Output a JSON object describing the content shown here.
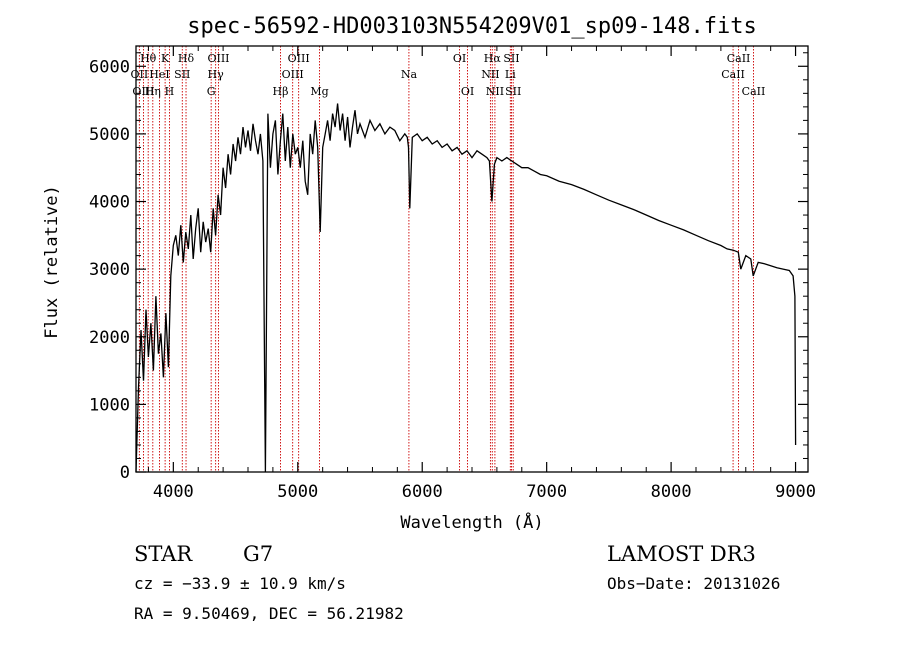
{
  "chart_data": {
    "type": "line",
    "title": "spec-56592-HD003103N554209V01_sp09-148.fits",
    "xlabel": "Wavelength (Å)",
    "ylabel": "Flux (relative)",
    "xlim": [
      3700,
      9100
    ],
    "ylim": [
      0,
      6300
    ],
    "xticks": [
      4000,
      5000,
      6000,
      7000,
      8000,
      9000
    ],
    "yticks": [
      0,
      1000,
      2000,
      3000,
      4000,
      5000,
      6000
    ],
    "series": [
      {
        "name": "spectrum",
        "x": [
          3700,
          3720,
          3740,
          3760,
          3780,
          3800,
          3820,
          3840,
          3860,
          3880,
          3900,
          3920,
          3940,
          3960,
          3980,
          4000,
          4020,
          4040,
          4060,
          4080,
          4100,
          4120,
          4140,
          4160,
          4180,
          4200,
          4220,
          4240,
          4260,
          4280,
          4300,
          4320,
          4340,
          4360,
          4380,
          4400,
          4420,
          4440,
          4460,
          4480,
          4500,
          4520,
          4540,
          4560,
          4580,
          4600,
          4620,
          4640,
          4660,
          4680,
          4700,
          4720,
          4740,
          4760,
          4780,
          4800,
          4820,
          4840,
          4860,
          4880,
          4900,
          4920,
          4940,
          4960,
          4980,
          5000,
          5020,
          5040,
          5060,
          5080,
          5100,
          5120,
          5140,
          5160,
          5180,
          5200,
          5220,
          5240,
          5260,
          5280,
          5300,
          5320,
          5340,
          5360,
          5380,
          5400,
          5420,
          5440,
          5460,
          5480,
          5500,
          5540,
          5580,
          5620,
          5660,
          5700,
          5740,
          5780,
          5820,
          5860,
          5880,
          5890,
          5900,
          5920,
          5960,
          6000,
          6040,
          6080,
          6120,
          6160,
          6200,
          6240,
          6280,
          6320,
          6360,
          6400,
          6440,
          6480,
          6520,
          6540,
          6560,
          6580,
          6600,
          6640,
          6680,
          6720,
          6760,
          6800,
          6850,
          6900,
          6950,
          7000,
          7100,
          7200,
          7300,
          7400,
          7500,
          7600,
          7700,
          7800,
          7900,
          8000,
          8100,
          8200,
          8300,
          8400,
          8450,
          8500,
          8540,
          8560,
          8600,
          8640,
          8660,
          8700,
          8750,
          8800,
          8850,
          8900,
          8950,
          8980,
          8995,
          9000
        ],
        "values": [
          0,
          1250,
          2100,
          1350,
          2400,
          1700,
          2200,
          1500,
          2600,
          1750,
          2050,
          1400,
          2350,
          1550,
          2900,
          3350,
          3500,
          3200,
          3650,
          3100,
          3550,
          3300,
          3800,
          3150,
          3600,
          3900,
          3250,
          3700,
          3400,
          3600,
          3250,
          3900,
          3500,
          4100,
          3800,
          4500,
          4200,
          4700,
          4400,
          4850,
          4600,
          4950,
          4700,
          5100,
          4800,
          5050,
          4750,
          5150,
          4900,
          4700,
          5000,
          4600,
          0,
          5300,
          4500,
          5000,
          5200,
          4400,
          4900,
          5300,
          4600,
          5100,
          4500,
          5000,
          4700,
          4800,
          4500,
          4900,
          4300,
          4100,
          5000,
          4700,
          5200,
          4800,
          3550,
          4800,
          5000,
          5200,
          4900,
          5300,
          5100,
          5450,
          5050,
          5300,
          4900,
          5250,
          4800,
          5100,
          5350,
          5000,
          5150,
          4950,
          5200,
          5050,
          5150,
          5000,
          5100,
          5050,
          4900,
          5000,
          4950,
          4800,
          3900,
          4950,
          5000,
          4900,
          4950,
          4850,
          4900,
          4800,
          4850,
          4750,
          4800,
          4700,
          4750,
          4650,
          4750,
          4700,
          4650,
          4600,
          4000,
          4550,
          4650,
          4600,
          4650,
          4600,
          4550,
          4500,
          4500,
          4450,
          4400,
          4380,
          4300,
          4250,
          4180,
          4100,
          4020,
          3950,
          3880,
          3800,
          3720,
          3650,
          3580,
          3500,
          3420,
          3350,
          3300,
          3280,
          3250,
          3000,
          3200,
          3150,
          2900,
          3100,
          3080,
          3050,
          3020,
          3000,
          2980,
          2900,
          2600,
          400
        ]
      }
    ],
    "spectral_lines": [
      {
        "name": "Hθ",
        "wavelength": 3798,
        "row": 1
      },
      {
        "name": "OII",
        "wavelength": 3727,
        "row": 2
      },
      {
        "name": "OIII",
        "wavelength": 3760,
        "row": 3
      },
      {
        "name": "Hη",
        "wavelength": 3835,
        "row": 3
      },
      {
        "name": "K",
        "wavelength": 3934,
        "row": 1
      },
      {
        "name": "HeI",
        "wavelength": 3889,
        "row": 2
      },
      {
        "name": "H",
        "wavelength": 3969,
        "row": 3
      },
      {
        "name": "SII",
        "wavelength": 4072,
        "row": 2
      },
      {
        "name": "Hδ",
        "wavelength": 4102,
        "row": 1
      },
      {
        "name": "OIII",
        "wavelength": 4363,
        "row": 1
      },
      {
        "name": "Hγ",
        "wavelength": 4340,
        "row": 2
      },
      {
        "name": "G",
        "wavelength": 4304,
        "row": 3
      },
      {
        "name": "Hβ",
        "wavelength": 4861,
        "row": 3
      },
      {
        "name": "OIII",
        "wavelength": 5007,
        "row": 1
      },
      {
        "name": "OIII",
        "wavelength": 4959,
        "row": 2
      },
      {
        "name": "Mg",
        "wavelength": 5175,
        "row": 3
      },
      {
        "name": "Na",
        "wavelength": 5893,
        "row": 2
      },
      {
        "name": "OI",
        "wavelength": 6300,
        "row": 1
      },
      {
        "name": "OI",
        "wavelength": 6364,
        "row": 3
      },
      {
        "name": "Hα",
        "wavelength": 6563,
        "row": 1
      },
      {
        "name": "NII",
        "wavelength": 6548,
        "row": 2
      },
      {
        "name": "NII",
        "wavelength": 6584,
        "row": 3
      },
      {
        "name": "SII",
        "wavelength": 6717,
        "row": 1
      },
      {
        "name": "Li",
        "wavelength": 6708,
        "row": 2
      },
      {
        "name": "SII",
        "wavelength": 6731,
        "row": 3
      },
      {
        "name": "CaII",
        "wavelength": 8542,
        "row": 1
      },
      {
        "name": "CaII",
        "wavelength": 8498,
        "row": 2
      },
      {
        "name": "CaII",
        "wavelength": 8662,
        "row": 3
      }
    ]
  },
  "info": {
    "object_class": "STAR",
    "subclass": "G7",
    "survey": "LAMOST DR3",
    "redshift": "cz = −33.9 ± 10.9 km/s",
    "obs_date": "Obs−Date: 20131026",
    "coords": "RA =   9.50469, DEC =  56.21982"
  },
  "colors": {
    "spectrum": "#000000",
    "line_marker": "#cc0000",
    "axis": "#000000",
    "background": "#ffffff"
  }
}
